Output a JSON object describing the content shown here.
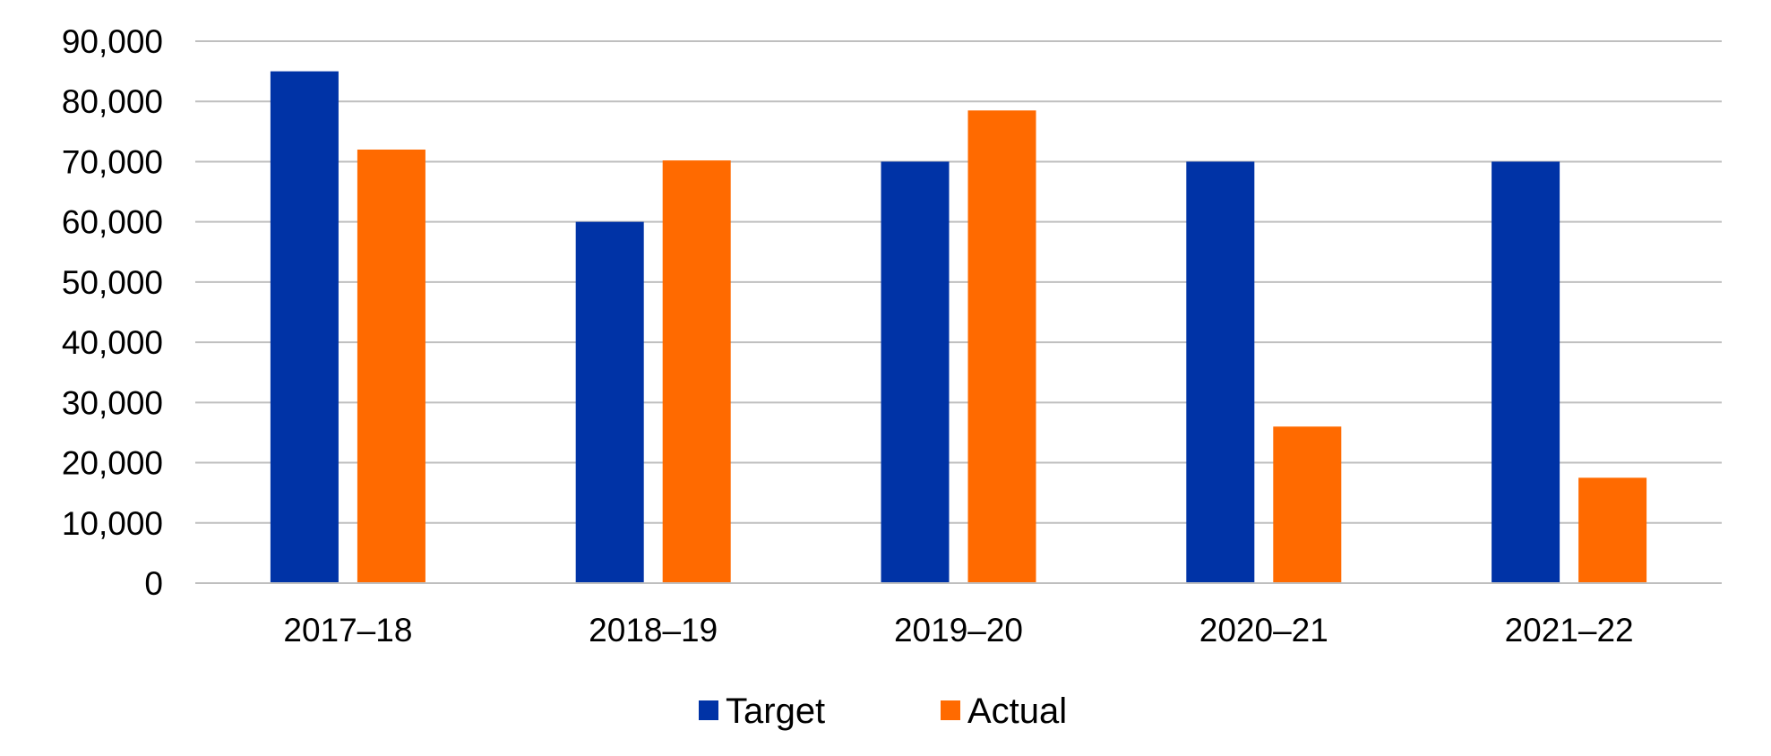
{
  "chart_data": {
    "type": "bar",
    "title": "",
    "xlabel": "",
    "ylabel": "",
    "categories": [
      "2017–18",
      "2018–19",
      "2019–20",
      "2020–21",
      "2021–22"
    ],
    "series": [
      {
        "name": "Target",
        "color": "#0033A6",
        "values": [
          85000,
          60000,
          70000,
          70000,
          70000
        ]
      },
      {
        "name": "Actual",
        "color": "#FF6A00",
        "values": [
          72000,
          70200,
          78500,
          26000,
          17500
        ]
      }
    ],
    "ylim": [
      0,
      90000
    ],
    "yticks": [
      0,
      10000,
      20000,
      30000,
      40000,
      50000,
      60000,
      70000,
      80000,
      90000
    ],
    "ytick_labels": [
      "0",
      "10,000",
      "20,000",
      "30,000",
      "40,000",
      "50,000",
      "60,000",
      "70,000",
      "80,000",
      "90,000"
    ],
    "grid": "horizontal",
    "legend": "bottom-center"
  }
}
